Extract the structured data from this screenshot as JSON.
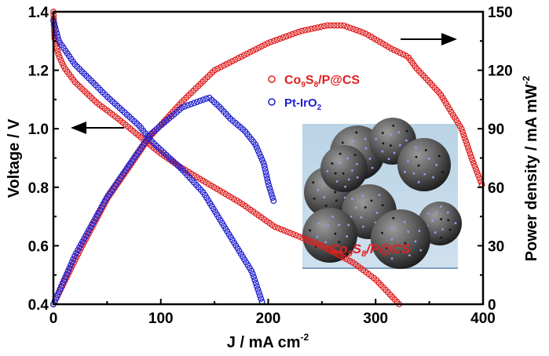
{
  "chart_data": {
    "type": "scatter",
    "xlabel": "J / mA cm",
    "xlabel_sup": "-2",
    "ylabel": "Voltage / V",
    "y2label": "Power density / mA mW",
    "y2label_sup": "-2",
    "xlim": [
      0,
      400
    ],
    "ylim": [
      0.4,
      1.4
    ],
    "y2lim": [
      0,
      150
    ],
    "xticks": [
      "0",
      "100",
      "200",
      "300",
      "400"
    ],
    "yticks": [
      "0.4",
      "0.6",
      "0.8",
      "1.0",
      "1.2",
      "1.4"
    ],
    "y2ticks": [
      "0",
      "30",
      "60",
      "90",
      "120",
      "150"
    ],
    "grid": false,
    "legend_position": "top-right",
    "series": [
      {
        "name": "Co9S8/P@CS",
        "name_main": "Co",
        "sub1": "9",
        "mid": "S",
        "sub2": "8",
        "rest": "/P@CS",
        "axis": "left",
        "kind": "voltage",
        "color": "#e02020",
        "points": [
          [
            0,
            1.4
          ],
          [
            1,
            1.31
          ],
          [
            5,
            1.25
          ],
          [
            10,
            1.21
          ],
          [
            20,
            1.16
          ],
          [
            40,
            1.09
          ],
          [
            60,
            1.035
          ],
          [
            80,
            0.975
          ],
          [
            100,
            0.915
          ],
          [
            120,
            0.865
          ],
          [
            145,
            0.81
          ],
          [
            175,
            0.745
          ],
          [
            206,
            0.665
          ],
          [
            250,
            0.6
          ],
          [
            280,
            0.54
          ],
          [
            300,
            0.485
          ],
          [
            322,
            0.4
          ]
        ]
      },
      {
        "name": "Co9S8/P@CS power",
        "axis": "right",
        "kind": "power",
        "color": "#e02020",
        "points": [
          [
            0,
            0
          ],
          [
            25,
            28
          ],
          [
            50,
            54
          ],
          [
            90,
            86
          ],
          [
            120,
            104
          ],
          [
            150,
            120
          ],
          [
            200,
            134
          ],
          [
            230,
            140
          ],
          [
            255,
            143
          ],
          [
            270,
            143
          ],
          [
            290,
            139
          ],
          [
            315,
            131
          ],
          [
            330,
            127
          ],
          [
            338,
            121
          ],
          [
            350,
            114
          ],
          [
            360,
            108
          ],
          [
            370,
            99
          ],
          [
            380,
            90
          ],
          [
            390,
            74
          ],
          [
            400,
            60
          ]
        ]
      },
      {
        "name": "Pt-IrO2",
        "name_main": "Pt-IrO",
        "sub1": "2",
        "axis": "left",
        "kind": "voltage",
        "color": "#2020d0",
        "points": [
          [
            0,
            1.37
          ],
          [
            5,
            1.3
          ],
          [
            20,
            1.22
          ],
          [
            50,
            1.11
          ],
          [
            80,
            1.01
          ],
          [
            92,
            0.955
          ],
          [
            120,
            0.86
          ],
          [
            140,
            0.78
          ],
          [
            150,
            0.72
          ],
          [
            170,
            0.6
          ],
          [
            185,
            0.51
          ],
          [
            195,
            0.4
          ]
        ]
      },
      {
        "name": "Pt-IrO2 power",
        "axis": "right",
        "kind": "power",
        "color": "#2020d0",
        "points": [
          [
            0,
            0
          ],
          [
            20,
            25
          ],
          [
            50,
            55
          ],
          [
            90,
            87
          ],
          [
            120,
            101
          ],
          [
            145,
            106
          ],
          [
            155,
            101
          ],
          [
            165,
            95
          ],
          [
            178,
            89
          ],
          [
            188,
            82
          ],
          [
            196,
            72
          ],
          [
            200,
            62
          ],
          [
            205,
            53
          ]
        ]
      }
    ],
    "inset_label_main": "Co",
    "inset_label_sub1": "9",
    "inset_label_mid": "S",
    "inset_label_sub2": "8",
    "inset_label_rest": "/P@CS"
  }
}
